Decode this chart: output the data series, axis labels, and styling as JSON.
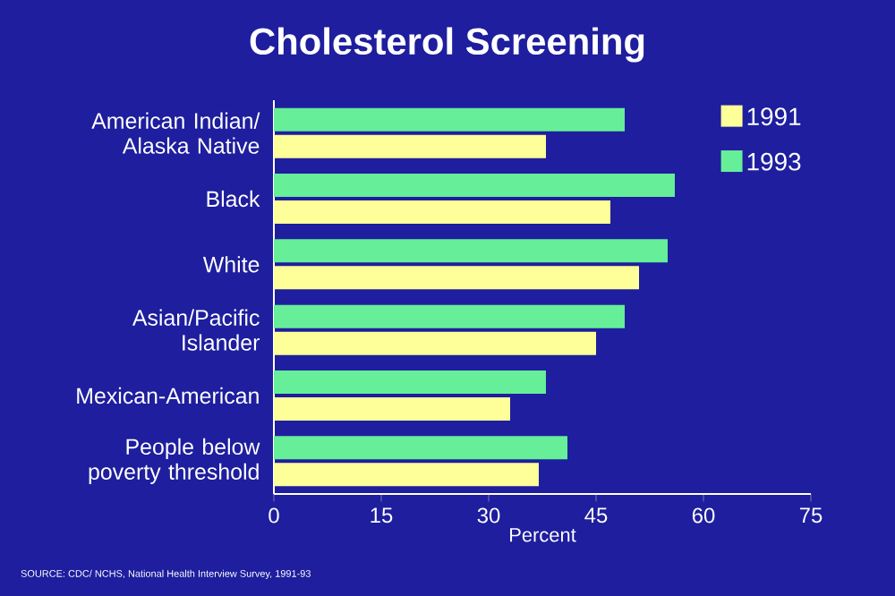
{
  "chart_data": {
    "type": "bar",
    "orientation": "horizontal",
    "title": "Cholesterol Screening",
    "xlabel": "Percent",
    "categories": [
      "American Indian/ Alaska Native",
      "Black",
      "White",
      "Asian/Pacific Islander",
      "Mexican-American",
      "People below poverty threshold"
    ],
    "series": [
      {
        "name": "1991",
        "color": "#ffff99",
        "values": [
          38,
          47,
          51,
          45,
          33,
          37
        ]
      },
      {
        "name": "1993",
        "color": "#66ee99",
        "values": [
          49,
          56,
          55,
          49,
          38,
          41
        ]
      }
    ],
    "xlim": [
      0,
      75
    ],
    "xticks": [
      0,
      15,
      30,
      45,
      60,
      75
    ],
    "legend": "top right",
    "grid": false,
    "annotations": [
      "SOURCE: CDC/ NCHS, National Health Interview Survey, 1991-93"
    ]
  }
}
